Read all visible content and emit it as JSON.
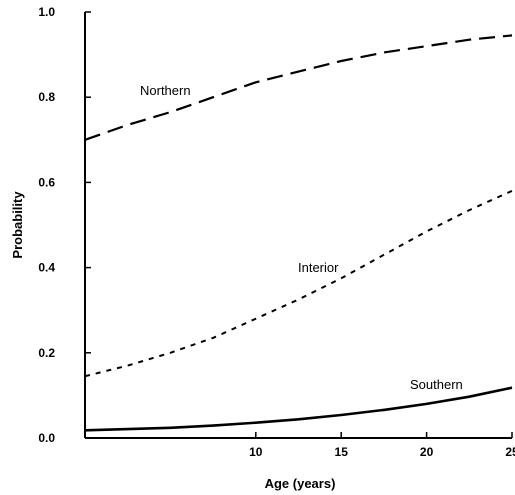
{
  "chart_data": {
    "type": "line",
    "xlabel": "Age (years)",
    "ylabel": "Probability",
    "xlim": [
      0,
      25
    ],
    "ylim": [
      0,
      1.0
    ],
    "x_ticks": [
      10,
      15,
      20,
      25
    ],
    "x_tick_labels": [
      "10",
      "15",
      "20",
      "25"
    ],
    "y_ticks": [
      0,
      0.2,
      0.4,
      0.6,
      0.8,
      1.0
    ],
    "y_tick_labels": [
      "0.0",
      "0.2",
      "0.4",
      "0.6",
      "0.8",
      "1.0"
    ],
    "grid": false,
    "legend": "none",
    "x": [
      0,
      2.5,
      5,
      7.5,
      10,
      12.5,
      15,
      17.5,
      20,
      22.5,
      25
    ],
    "series": [
      {
        "name": "Northern",
        "dash": "dashed",
        "values": [
          0.7,
          0.735,
          0.765,
          0.8,
          0.835,
          0.86,
          0.885,
          0.905,
          0.92,
          0.935,
          0.945
        ]
      },
      {
        "name": "Interior",
        "dash": "dotted",
        "values": [
          0.145,
          0.17,
          0.2,
          0.235,
          0.28,
          0.325,
          0.375,
          0.43,
          0.485,
          0.535,
          0.58
        ]
      },
      {
        "name": "Southern",
        "dash": "solid",
        "values": [
          0.018,
          0.021,
          0.024,
          0.029,
          0.036,
          0.044,
          0.054,
          0.066,
          0.08,
          0.097,
          0.118
        ]
      }
    ]
  }
}
